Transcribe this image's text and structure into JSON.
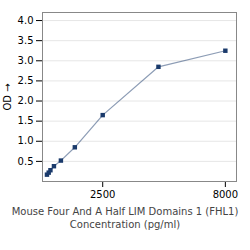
{
  "chart_data": {
    "type": "line",
    "title": "Mouse Four And A Half LIM Domains 1 (FHL1)",
    "xlabel": "Concentration (pg/ml)",
    "ylabel": "OD",
    "x": [
      0,
      78,
      156,
      313,
      625,
      1250,
      2500,
      5000,
      8000
    ],
    "values": [
      0.17,
      0.22,
      0.28,
      0.38,
      0.52,
      0.85,
      1.65,
      2.85,
      3.25
    ],
    "color": "#1a3a6b",
    "marker": "square",
    "xlim": [
      -200,
      8500
    ],
    "ylim": [
      0,
      4.2
    ],
    "xticks": [
      2500,
      8000
    ],
    "yticks": [
      0.5,
      {
        "value": 1,
        "label": "1.0"
      },
      1.5,
      {
        "value": 2,
        "label": "2.0"
      },
      2.5,
      {
        "value": 3,
        "label": "3.0"
      },
      3.5,
      {
        "value": 4,
        "label": "4.0"
      }
    ],
    "grid": true
  }
}
